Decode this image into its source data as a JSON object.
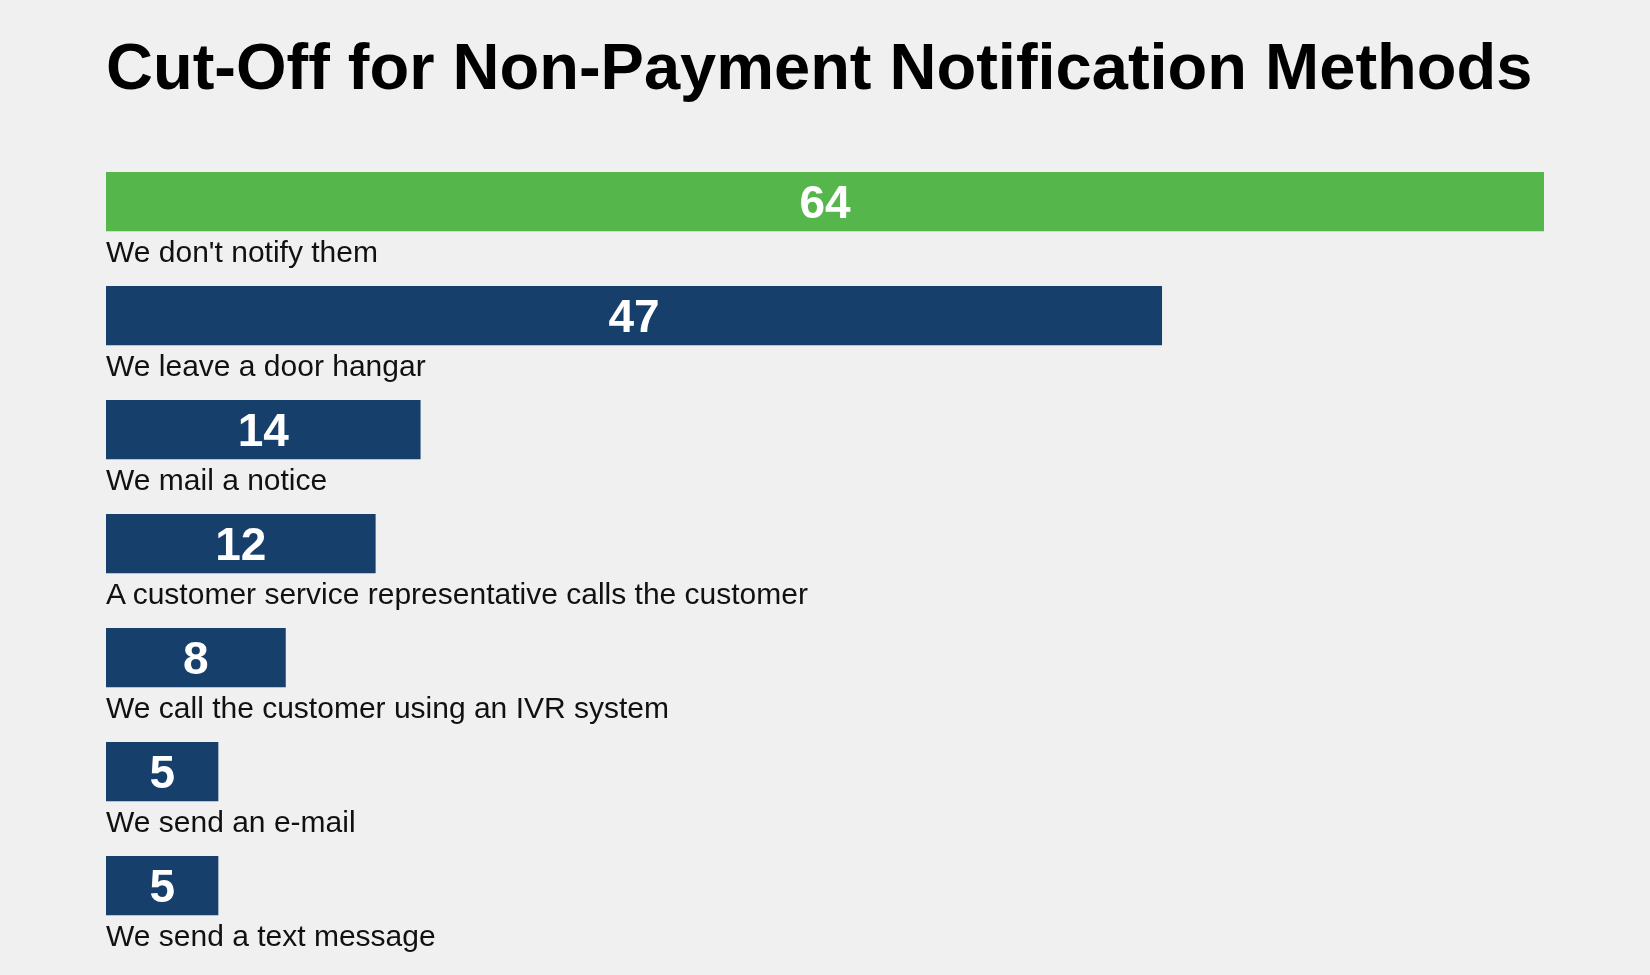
{
  "chart_data": {
    "type": "bar",
    "orientation": "horizontal",
    "title": "Cut-Off for Non-Payment Notification Methods",
    "categories": [
      "We don't notify them",
      "We leave a door hangar",
      "We mail a notice",
      "A customer service representative calls the customer",
      "We call the customer using an IVR system",
      "We send an e-mail",
      "We send a text message"
    ],
    "values": [
      64,
      47,
      14,
      12,
      8,
      5,
      5
    ],
    "colors": [
      "#55b74b",
      "#173f6b",
      "#173f6b",
      "#173f6b",
      "#173f6b",
      "#173f6b",
      "#173f6b"
    ],
    "data_labels": true
  }
}
